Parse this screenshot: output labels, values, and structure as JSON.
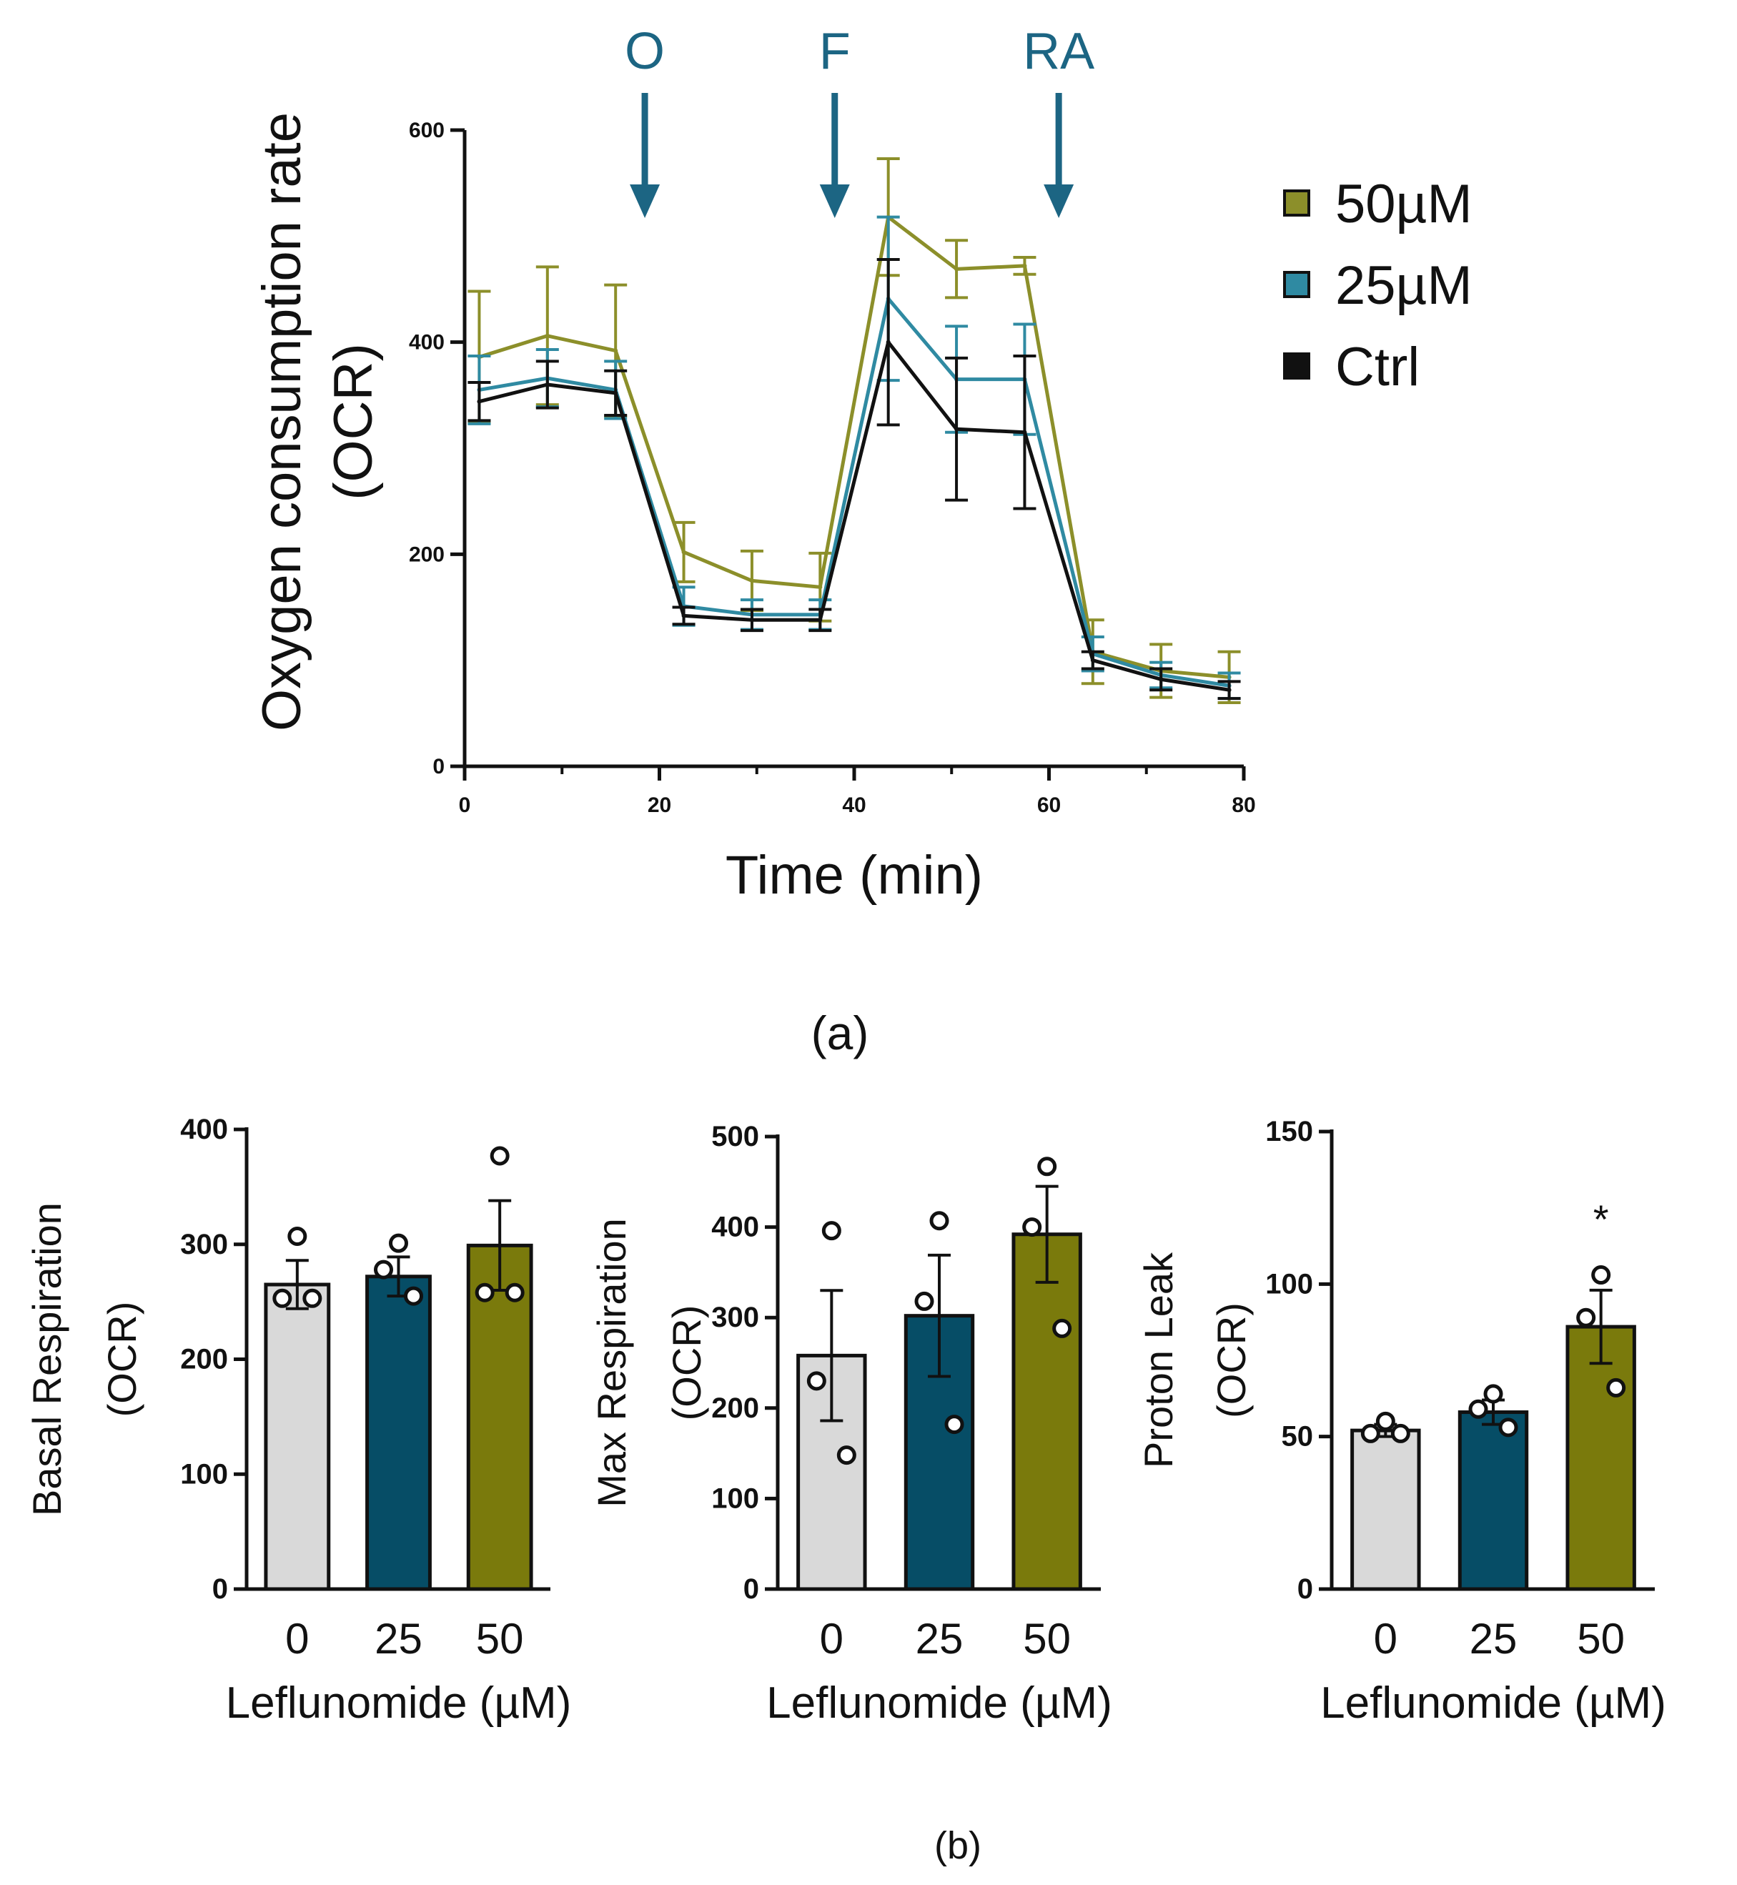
{
  "panels": {
    "a_label": "(a)",
    "b_label": "(b)"
  },
  "chart_data": [
    {
      "id": "ocr-line",
      "type": "line",
      "title": "",
      "xlabel": "Time (min)",
      "ylabel": "Oxygen consumption rate",
      "ylabel2": "(OCR)",
      "xlim": [
        0,
        80
      ],
      "ylim": [
        0,
        600
      ],
      "xticks": [
        "0",
        "20",
        "40",
        "60",
        "80"
      ],
      "yticks": [
        "0",
        "200",
        "400",
        "600"
      ],
      "injections": [
        {
          "label": "O",
          "x": 18.5
        },
        {
          "label": "F",
          "x": 38
        },
        {
          "label": "RA",
          "x": 61
        }
      ],
      "x": [
        1.5,
        8.5,
        15.5,
        22.5,
        29.5,
        36.5,
        43.5,
        50.5,
        57.5,
        64.5,
        71.5,
        78.5
      ],
      "series": [
        {
          "name": "50µM",
          "color": "#8c8f2a",
          "values": [
            386,
            406,
            392,
            202,
            175,
            169,
            518,
            469,
            472,
            108,
            90,
            84
          ],
          "errors": [
            62,
            65,
            62,
            28,
            28,
            32,
            55,
            27,
            8,
            30,
            25,
            24
          ]
        },
        {
          "name": "25µM",
          "color": "#2f8aa2",
          "values": [
            355,
            366,
            355,
            151,
            143,
            143,
            441,
            365,
            365,
            106,
            86,
            76
          ],
          "errors": [
            32,
            27,
            27,
            18,
            14,
            14,
            77,
            50,
            52,
            16,
            12,
            12
          ]
        },
        {
          "name": "Ctrl",
          "color": "#111111",
          "values": [
            344,
            360,
            352,
            142,
            138,
            138,
            400,
            318,
            315,
            100,
            82,
            72
          ],
          "errors": [
            18,
            22,
            21,
            8,
            10,
            10,
            78,
            67,
            72,
            8,
            10,
            8
          ]
        }
      ]
    },
    {
      "id": "basal",
      "type": "bar",
      "ylabel": "Basal Respiration",
      "ylabel2": "(OCR)",
      "xlabel": "Leflunomide (µM)",
      "ylim": [
        0,
        400
      ],
      "yticks": [
        "0",
        "100",
        "200",
        "300",
        "400"
      ],
      "categories": [
        "0",
        "25",
        "50"
      ],
      "values": [
        265,
        272,
        299
      ],
      "errors": [
        21,
        17,
        39
      ],
      "colors": [
        "#d9d9d9",
        "#064d66",
        "#7a7a0c"
      ],
      "points": [
        [
          307,
          253,
          253
        ],
        [
          301,
          278,
          255
        ],
        [
          377,
          258,
          258
        ]
      ],
      "annotations": [
        "",
        "",
        ""
      ]
    },
    {
      "id": "max",
      "type": "bar",
      "ylabel": "Max Respiration",
      "ylabel2": "(OCR)",
      "xlabel": "Leflunomide (µM)",
      "ylim": [
        0,
        500
      ],
      "yticks": [
        "0",
        "100",
        "200",
        "300",
        "400",
        "500"
      ],
      "categories": [
        "0",
        "25",
        "50"
      ],
      "values": [
        258,
        302,
        392
      ],
      "errors": [
        72,
        67,
        53
      ],
      "colors": [
        "#d9d9d9",
        "#064d66",
        "#7a7a0c"
      ],
      "points": [
        [
          396,
          230,
          148
        ],
        [
          407,
          318,
          182
        ],
        [
          467,
          400,
          288
        ]
      ],
      "annotations": [
        "",
        "",
        ""
      ]
    },
    {
      "id": "leak",
      "type": "bar",
      "ylabel": "Proton Leak",
      "ylabel2": "(OCR)",
      "xlabel": "Leflunomide (µM)",
      "ylim": [
        0,
        150
      ],
      "yticks": [
        "0",
        "50",
        "100",
        "150"
      ],
      "categories": [
        "0",
        "25",
        "50"
      ],
      "values": [
        52,
        58,
        86
      ],
      "errors": [
        2,
        4,
        12
      ],
      "colors": [
        "#d9d9d9",
        "#064d66",
        "#7a7a0c"
      ],
      "points": [
        [
          55,
          51,
          51
        ],
        [
          64,
          59,
          53
        ],
        [
          103,
          89,
          66
        ]
      ],
      "annotations": [
        "",
        "",
        "*"
      ]
    }
  ]
}
